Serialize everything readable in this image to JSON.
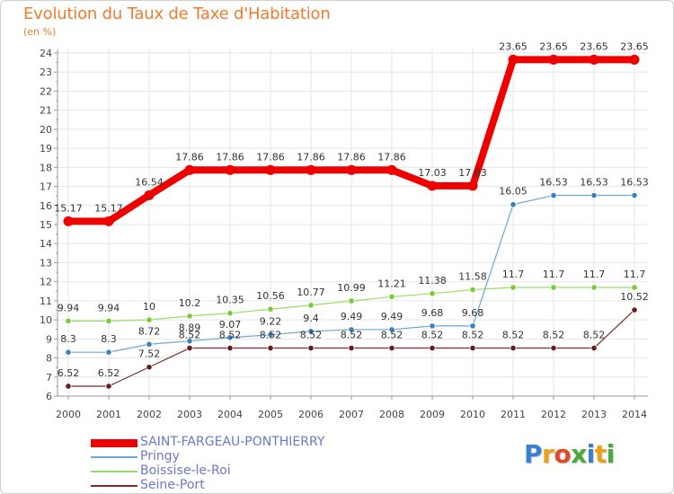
{
  "header": {
    "title": "Evolution du Taux de Taxe d'Habitation",
    "unit_label": "(en %)"
  },
  "brand": {
    "logo_text": "Proxiti"
  },
  "chart_data": {
    "type": "line",
    "title": "Evolution du Taux de Taxe d'Habitation",
    "ylabel": "(en %)",
    "xlabel": "",
    "x": [
      "2000",
      "2001",
      "2002",
      "2003",
      "2004",
      "2005",
      "2006",
      "2007",
      "2008",
      "2009",
      "2010",
      "2011",
      "2012",
      "2013",
      "2014"
    ],
    "ylim": [
      6,
      24
    ],
    "yticks": [
      6,
      7,
      8,
      9,
      10,
      11,
      12,
      13,
      14,
      15,
      16,
      17,
      18,
      19,
      20,
      21,
      22,
      23,
      24
    ],
    "grid": true,
    "legend_position": "bottom-left",
    "series": [
      {
        "name": "SAINT-FARGEAU-PONTHIERRY",
        "color": "#ee0000",
        "values": [
          15.17,
          15.17,
          16.54,
          17.86,
          17.86,
          17.86,
          17.86,
          17.86,
          17.86,
          17.03,
          17.03,
          23.65,
          23.65,
          23.65,
          23.65
        ],
        "labels": [
          "15.17",
          "15.17",
          "16.54",
          "17.86",
          "17.86",
          "17.86",
          "17.86",
          "17.86",
          "17.86",
          "17.03",
          "17.03",
          "23.65",
          "23.65",
          "23.65",
          "23.65"
        ]
      },
      {
        "name": "Pringy",
        "color": "#6ba6d4",
        "values": [
          8.3,
          8.3,
          8.72,
          8.89,
          9.07,
          9.22,
          9.4,
          9.49,
          9.49,
          9.68,
          9.68,
          16.05,
          16.53,
          16.53,
          16.53
        ],
        "labels": [
          "8.3",
          "8.3",
          "8.72",
          "8.89",
          "9.07",
          "9.22",
          "9.4",
          "9.49",
          "9.49",
          "9.68",
          "9.68",
          "16.05",
          "16.53",
          "16.53",
          "16.53"
        ]
      },
      {
        "name": "Boissise-le-Roi",
        "color": "#99dd66",
        "values": [
          9.94,
          9.94,
          10,
          10.2,
          10.35,
          10.56,
          10.77,
          10.99,
          11.21,
          11.38,
          11.58,
          11.7,
          11.7,
          11.7,
          11.7
        ],
        "labels": [
          "9.94",
          "9.94",
          "10",
          "10.2",
          "10.35",
          "10.56",
          "10.77",
          "10.99",
          "11.21",
          "11.38",
          "11.58",
          "11.7",
          "11.7",
          "11.7",
          "11.7"
        ]
      },
      {
        "name": "Seine-Port",
        "color": "#7a2b2b",
        "values": [
          6.52,
          6.52,
          7.52,
          8.52,
          8.52,
          8.52,
          8.52,
          8.52,
          8.52,
          8.52,
          8.52,
          8.52,
          8.52,
          8.52,
          10.52
        ],
        "labels": [
          "6.52",
          "6.52",
          "7.52",
          "8.52",
          "8.52",
          "8.52",
          "8.52",
          "8.52",
          "8.52",
          "8.52",
          "8.52",
          "8.52",
          "8.52",
          "8.52",
          "10.52"
        ]
      }
    ]
  }
}
